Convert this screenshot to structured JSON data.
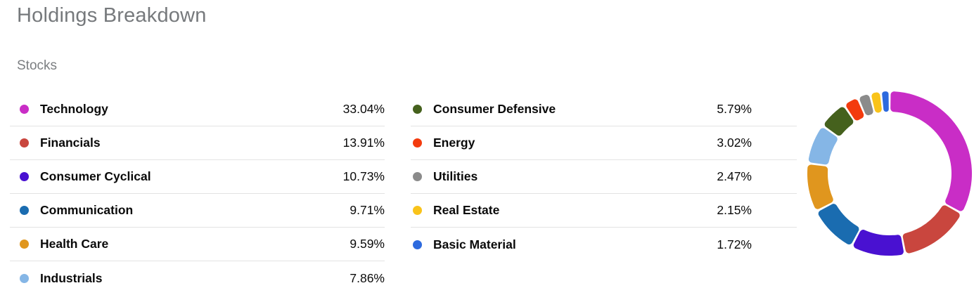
{
  "header": {
    "title": "Holdings Breakdown",
    "subtitle": "Stocks"
  },
  "legend": {
    "columns": [
      {
        "items": [
          {
            "label": "Technology",
            "value": "33.04%",
            "color": "#c92dc6"
          },
          {
            "label": "Financials",
            "value": "13.91%",
            "color": "#c9463e"
          },
          {
            "label": "Consumer Cyclical",
            "value": "10.73%",
            "color": "#4911d1"
          },
          {
            "label": "Communication",
            "value": "9.71%",
            "color": "#1a6cb0"
          },
          {
            "label": "Health Care",
            "value": "9.59%",
            "color": "#e0961e"
          },
          {
            "label": "Industrials",
            "value": "7.86%",
            "color": "#85b6e6"
          }
        ]
      },
      {
        "items": [
          {
            "label": "Consumer Defensive",
            "value": "5.79%",
            "color": "#45611d"
          },
          {
            "label": "Energy",
            "value": "3.02%",
            "color": "#f33b0e"
          },
          {
            "label": "Utilities",
            "value": "2.47%",
            "color": "#8b8b8b"
          },
          {
            "label": "Real Estate",
            "value": "2.15%",
            "color": "#f9c31a"
          },
          {
            "label": "Basic Material",
            "value": "1.72%",
            "color": "#2d6ade"
          }
        ]
      }
    ]
  },
  "chart_data": {
    "type": "pie",
    "subtype": "donut",
    "title": "Holdings Breakdown",
    "group_label": "Stocks",
    "categories": [
      "Technology",
      "Financials",
      "Consumer Cyclical",
      "Communication",
      "Health Care",
      "Industrials",
      "Consumer Defensive",
      "Energy",
      "Utilities",
      "Real Estate",
      "Basic Material"
    ],
    "values": [
      33.04,
      13.91,
      10.73,
      9.71,
      9.59,
      7.86,
      5.79,
      3.02,
      2.47,
      2.15,
      1.72
    ],
    "colors": [
      "#c92dc6",
      "#c9463e",
      "#4911d1",
      "#1a6cb0",
      "#e0961e",
      "#85b6e6",
      "#45611d",
      "#f33b0e",
      "#8b8b8b",
      "#f9c31a",
      "#2d6ade"
    ],
    "start_angle_deg": 0,
    "direction": "clockwise",
    "inner_radius_ratio": 0.75,
    "legend_position": "left",
    "data_labels": "none"
  }
}
